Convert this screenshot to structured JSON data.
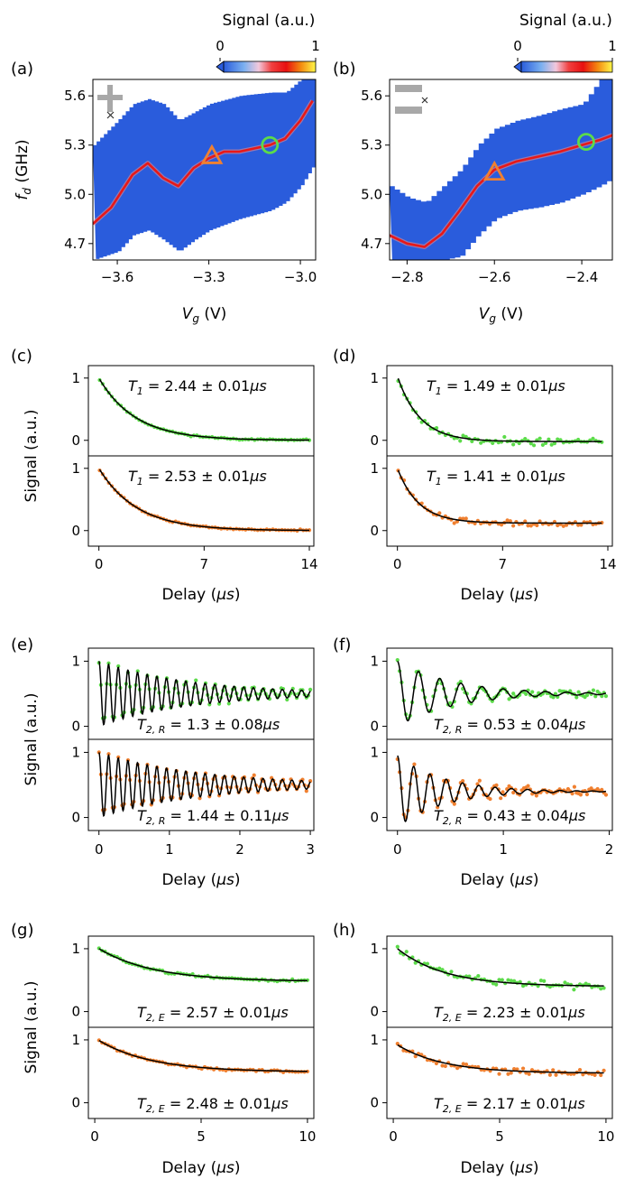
{
  "colors": {
    "green": "#5cdb4a",
    "orange": "#f08030",
    "heat_bg": "#2a5cdc",
    "fit": "#000000",
    "gate_icon": "#a8a8a8"
  },
  "colorbar": {
    "label": "Signal (a.u.)",
    "ticks": [
      "0",
      "1"
    ]
  },
  "chart_data": [
    {
      "panel": "(a)",
      "type": "heatmap",
      "xlabel_main": "V",
      "xlabel_sub": "g",
      "xlabel_unit": " (V)",
      "ylabel_main": "f",
      "ylabel_sub": "d",
      "ylabel_unit": " (GHz)",
      "xlim": [
        -3.68,
        -2.95
      ],
      "ylim": [
        4.6,
        5.7
      ],
      "xticks": [
        -3.6,
        -3.3,
        -3.0
      ],
      "xtick_labels": [
        "−3.6",
        "−3.3",
        "−3.0"
      ],
      "yticks": [
        4.7,
        5.0,
        5.3,
        5.6
      ],
      "ytick_labels": [
        "4.7",
        "5.0",
        "5.3",
        "5.6"
      ],
      "resonance": {
        "x": [
          -3.68,
          -3.62,
          -3.55,
          -3.5,
          -3.45,
          -3.4,
          -3.35,
          -3.3,
          -3.25,
          -3.2,
          -3.15,
          -3.1,
          -3.05,
          -3.0,
          -2.96
        ],
        "y": [
          4.82,
          4.92,
          5.12,
          5.19,
          5.1,
          5.05,
          5.16,
          5.22,
          5.26,
          5.26,
          5.28,
          5.3,
          5.34,
          5.45,
          5.57
        ]
      },
      "band": {
        "x": [
          -3.68,
          -3.6,
          -3.55,
          -3.5,
          -3.45,
          -3.4,
          -3.35,
          -3.3,
          -3.2,
          -3.1,
          -3.05,
          -3.0,
          -2.95
        ],
        "low": [
          4.6,
          4.65,
          4.75,
          4.78,
          4.72,
          4.65,
          4.72,
          4.78,
          4.85,
          4.9,
          4.95,
          5.05,
          5.2
        ],
        "high": [
          5.3,
          5.45,
          5.55,
          5.58,
          5.55,
          5.45,
          5.5,
          5.55,
          5.6,
          5.62,
          5.62,
          5.7,
          5.7
        ]
      },
      "markers": [
        {
          "shape": "triangle",
          "x": -3.29,
          "y": 5.23,
          "color": "orange"
        },
        {
          "shape": "circle",
          "x": -3.1,
          "y": 5.3,
          "color": "green"
        }
      ],
      "icon": "plus-gate-icon"
    },
    {
      "panel": "(b)",
      "type": "heatmap",
      "xlabel_main": "V",
      "xlabel_sub": "g",
      "xlabel_unit": " (V)",
      "xlim": [
        -2.84,
        -2.33
      ],
      "ylim": [
        4.6,
        5.7
      ],
      "xticks": [
        -2.8,
        -2.6,
        -2.4
      ],
      "xtick_labels": [
        "−2.8",
        "−2.6",
        "−2.4"
      ],
      "yticks": [
        4.7,
        5.0,
        5.3,
        5.6
      ],
      "ytick_labels": [
        "4.7",
        "5.0",
        "5.3",
        "5.6"
      ],
      "resonance": {
        "x": [
          -2.84,
          -2.8,
          -2.76,
          -2.72,
          -2.68,
          -2.64,
          -2.6,
          -2.55,
          -2.5,
          -2.45,
          -2.4,
          -2.36,
          -2.33
        ],
        "y": [
          4.75,
          4.7,
          4.68,
          4.76,
          4.9,
          5.05,
          5.15,
          5.2,
          5.23,
          5.26,
          5.3,
          5.33,
          5.36
        ]
      },
      "band": {
        "x": [
          -2.84,
          -2.8,
          -2.76,
          -2.72,
          -2.68,
          -2.64,
          -2.6,
          -2.55,
          -2.5,
          -2.45,
          -2.4,
          -2.36,
          -2.33
        ],
        "low": [
          4.6,
          4.6,
          4.6,
          4.6,
          4.62,
          4.75,
          4.85,
          4.9,
          4.92,
          4.95,
          5.0,
          5.05,
          5.1
        ],
        "high": [
          5.05,
          4.98,
          4.95,
          5.05,
          5.15,
          5.3,
          5.4,
          5.45,
          5.48,
          5.52,
          5.55,
          5.7,
          5.7
        ]
      },
      "markers": [
        {
          "shape": "triangle",
          "x": -2.6,
          "y": 5.13,
          "color": "orange"
        },
        {
          "shape": "circle",
          "x": -2.39,
          "y": 5.32,
          "color": "green"
        }
      ],
      "icon": "bar-gate-icon"
    },
    {
      "panel": "(c)",
      "type": "scatter",
      "model": "exp_decay",
      "xlabel_main": "Delay (",
      "xlabel_unit_it": "μs",
      "xlabel_close": ")",
      "ylabel": "Signal (a.u.)",
      "xlim": [
        -0.7,
        14.3
      ],
      "xticks": [
        0,
        7,
        14
      ],
      "xtick_labels": [
        "0",
        "7",
        "14"
      ],
      "series": [
        {
          "color": "green",
          "ylim": [
            -0.25,
            1.2
          ],
          "yticks": [
            0,
            1
          ],
          "ytick_labels": [
            "0",
            "1"
          ],
          "params": {
            "A": 1.0,
            "tau": 2.44,
            "B": 0.0,
            "x0": 0
          },
          "n": 70,
          "x_range": [
            0.05,
            14
          ],
          "noise": 0.012,
          "seed": 11,
          "annotation_main": "T",
          "annotation_sub": "1",
          "annotation_rest": " = 2.44 ± 0.01",
          "annotation_unit": "μs"
        },
        {
          "color": "orange",
          "ylim": [
            -0.25,
            1.2
          ],
          "yticks": [
            0,
            1
          ],
          "ytick_labels": [
            "0",
            "1"
          ],
          "params": {
            "A": 1.0,
            "tau": 2.53,
            "B": 0.0,
            "x0": 0
          },
          "n": 70,
          "x_range": [
            0.05,
            14
          ],
          "noise": 0.012,
          "seed": 12,
          "annotation_main": "T",
          "annotation_sub": "1",
          "annotation_rest": " = 2.53 ± 0.01",
          "annotation_unit": "μs"
        }
      ]
    },
    {
      "panel": "(d)",
      "type": "scatter",
      "model": "exp_decay",
      "xlabel_main": "Delay (",
      "xlabel_unit_it": "μs",
      "xlabel_close": ")",
      "xlim": [
        -0.7,
        14.3
      ],
      "xticks": [
        0,
        7,
        14
      ],
      "xtick_labels": [
        "0",
        "7",
        "14"
      ],
      "series": [
        {
          "color": "green",
          "ylim": [
            -0.25,
            1.2
          ],
          "yticks": [
            0,
            1
          ],
          "ytick_labels": [
            "0",
            "1"
          ],
          "params": {
            "A": 1.05,
            "tau": 1.49,
            "B": -0.02,
            "x0": 0
          },
          "n": 70,
          "x_range": [
            0.05,
            13.6
          ],
          "noise": 0.05,
          "seed": 21,
          "annotation_main": "T",
          "annotation_sub": "1",
          "annotation_rest": " = 1.49 ± 0.01",
          "annotation_unit": "μs"
        },
        {
          "color": "orange",
          "ylim": [
            -0.25,
            1.2
          ],
          "yticks": [
            0,
            1
          ],
          "ytick_labels": [
            "0",
            "1"
          ],
          "params": {
            "A": 0.88,
            "tau": 1.41,
            "B": 0.12,
            "x0": 0
          },
          "n": 70,
          "x_range": [
            0.05,
            13.6
          ],
          "noise": 0.045,
          "seed": 22,
          "annotation_main": "T",
          "annotation_sub": "1",
          "annotation_rest": " = 1.41 ± 0.01",
          "annotation_unit": "μs"
        }
      ]
    },
    {
      "panel": "(e)",
      "type": "scatter",
      "model": "ramsey",
      "xlabel_main": "Delay (",
      "xlabel_unit_it": "μs",
      "xlabel_close": ")",
      "ylabel": "Signal (a.u.)",
      "xlim": [
        -0.15,
        3.05
      ],
      "xticks": [
        0,
        1,
        2,
        3
      ],
      "xtick_labels": [
        "0",
        "1",
        "2",
        "3"
      ],
      "series": [
        {
          "color": "green",
          "ylim": [
            -0.2,
            1.2
          ],
          "yticks": [
            0,
            1
          ],
          "ytick_labels": [
            "0",
            "1"
          ],
          "params": {
            "A": 0.5,
            "tau": 1.3,
            "B": 0.5,
            "f": 7.3,
            "x0": 0
          },
          "n": 110,
          "x_range": [
            0.0,
            3.0
          ],
          "noise": 0.035,
          "seed": 31,
          "annotation_main": "T",
          "annotation_sub": "2, R",
          "annotation_rest": " = 1.3 ± 0.08",
          "annotation_unit": "μs"
        },
        {
          "color": "orange",
          "ylim": [
            -0.2,
            1.2
          ],
          "yticks": [
            0,
            1
          ],
          "ytick_labels": [
            "0",
            "1"
          ],
          "params": {
            "A": 0.5,
            "tau": 1.44,
            "B": 0.5,
            "f": 7.3,
            "x0": 0
          },
          "n": 110,
          "x_range": [
            0.0,
            3.0
          ],
          "noise": 0.04,
          "seed": 32,
          "annotation_main": "T",
          "annotation_sub": "2, R",
          "annotation_rest": " = 1.44 ± 0.11",
          "annotation_unit": "μs"
        }
      ]
    },
    {
      "panel": "(f)",
      "type": "scatter",
      "model": "ramsey",
      "xlabel_main": "Delay (",
      "xlabel_unit_it": "μs",
      "xlabel_close": ")",
      "xlim": [
        -0.1,
        2.03
      ],
      "xticks": [
        0,
        1,
        2
      ],
      "xtick_labels": [
        "0",
        "1",
        "2"
      ],
      "series": [
        {
          "color": "green",
          "ylim": [
            -0.2,
            1.2
          ],
          "yticks": [
            0,
            1
          ],
          "ytick_labels": [
            "0",
            "1"
          ],
          "params": {
            "A": 0.5,
            "tau": 0.53,
            "B": 0.5,
            "f": 5.0,
            "x0": 0
          },
          "n": 100,
          "x_range": [
            0.0,
            1.97
          ],
          "noise": 0.06,
          "seed": 41,
          "annotation_main": "T",
          "annotation_sub": "2, R",
          "annotation_rest": " = 0.53 ± 0.04",
          "annotation_unit": "μs"
        },
        {
          "color": "orange",
          "ylim": [
            -0.2,
            1.2
          ],
          "yticks": [
            0,
            1
          ],
          "ytick_labels": [
            "0",
            "1"
          ],
          "params": {
            "A": 0.55,
            "tau": 0.43,
            "B": 0.4,
            "f": 6.5,
            "x0": 0
          },
          "n": 100,
          "x_range": [
            0.0,
            1.97
          ],
          "noise": 0.07,
          "seed": 42,
          "annotation_main": "T",
          "annotation_sub": "2, R",
          "annotation_rest": " = 0.43 ± 0.04",
          "annotation_unit": "μs"
        }
      ]
    },
    {
      "panel": "(g)",
      "type": "scatter",
      "model": "exp_decay",
      "xlabel_main": "Delay (",
      "xlabel_unit_it": "μs",
      "xlabel_close": ")",
      "ylabel": "Signal (a.u.)",
      "xlim": [
        -0.3,
        10.3
      ],
      "xticks": [
        0,
        5,
        10
      ],
      "xtick_labels": [
        "0",
        "5",
        "10"
      ],
      "series": [
        {
          "color": "green",
          "ylim": [
            -0.25,
            1.2
          ],
          "yticks": [
            0,
            1
          ],
          "ytick_labels": [
            "0",
            "1"
          ],
          "params": {
            "A": 0.52,
            "tau": 2.57,
            "B": 0.48,
            "x0": 0.2
          },
          "n": 70,
          "x_range": [
            0.2,
            10
          ],
          "noise": 0.018,
          "seed": 51,
          "annotation_main": "T",
          "annotation_sub": "2, E",
          "annotation_rest": " = 2.57 ± 0.01",
          "annotation_unit": "μs"
        },
        {
          "color": "orange",
          "ylim": [
            -0.25,
            1.2
          ],
          "yticks": [
            0,
            1
          ],
          "ytick_labels": [
            "0",
            "1"
          ],
          "params": {
            "A": 0.5,
            "tau": 2.48,
            "B": 0.49,
            "x0": 0.2
          },
          "n": 70,
          "x_range": [
            0.2,
            10
          ],
          "noise": 0.018,
          "seed": 52,
          "annotation_main": "T",
          "annotation_sub": "2, E",
          "annotation_rest": " = 2.48 ± 0.01",
          "annotation_unit": "μs"
        }
      ]
    },
    {
      "panel": "(h)",
      "type": "scatter",
      "model": "exp_decay",
      "xlabel_main": "Delay (",
      "xlabel_unit_it": "μs",
      "xlabel_close": ")",
      "xlim": [
        -0.3,
        10.3
      ],
      "xticks": [
        0,
        5,
        10
      ],
      "xtick_labels": [
        "0",
        "5",
        "10"
      ],
      "series": [
        {
          "color": "green",
          "ylim": [
            -0.25,
            1.2
          ],
          "yticks": [
            0,
            1
          ],
          "ytick_labels": [
            "0",
            "1"
          ],
          "params": {
            "A": 0.6,
            "tau": 2.23,
            "B": 0.4,
            "x0": 0.2
          },
          "n": 70,
          "x_range": [
            0.2,
            9.9
          ],
          "noise": 0.06,
          "seed": 61,
          "annotation_main": "T",
          "annotation_sub": "2, E",
          "annotation_rest": " = 2.23 ± 0.01",
          "annotation_unit": "μs"
        },
        {
          "color": "orange",
          "ylim": [
            -0.25,
            1.2
          ],
          "yticks": [
            0,
            1
          ],
          "ytick_labels": [
            "0",
            "1"
          ],
          "params": {
            "A": 0.45,
            "tau": 2.17,
            "B": 0.47,
            "x0": 0.2
          },
          "n": 70,
          "x_range": [
            0.2,
            9.9
          ],
          "noise": 0.055,
          "seed": 62,
          "annotation_main": "T",
          "annotation_sub": "2, E",
          "annotation_rest": " = 2.17 ± 0.01",
          "annotation_unit": "μs"
        }
      ]
    }
  ]
}
